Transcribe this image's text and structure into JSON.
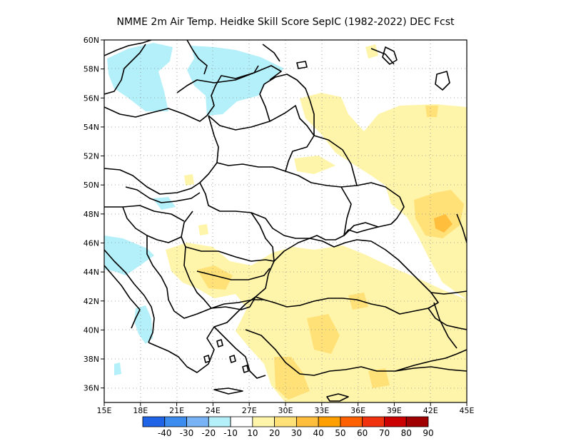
{
  "title": "NMME  2m Air Temp. Heidke Skill Score SepIC (1982-2022) DEC Fcst",
  "map": {
    "lon_range": [
      15,
      45
    ],
    "lat_range": [
      35,
      60
    ],
    "x_tick_labels": [
      "15E",
      "18E",
      "21E",
      "24E",
      "27E",
      "30E",
      "33E",
      "36E",
      "39E",
      "42E",
      "45E"
    ],
    "y_tick_labels": [
      "36N",
      "38N",
      "40N",
      "42N",
      "44N",
      "46N",
      "48N",
      "50N",
      "52N",
      "54N",
      "56N",
      "58N",
      "60N"
    ],
    "grid": "dotted",
    "region": "Eastern Europe / Black Sea / Turkey"
  },
  "colorbar": {
    "labels": [
      "-40",
      "-30",
      "-20",
      "-10",
      "10",
      "20",
      "30",
      "40",
      "50",
      "60",
      "70",
      "80",
      "90"
    ],
    "colors": [
      "#1f64e6",
      "#3c8cf0",
      "#78b4f5",
      "#b4f0fa",
      "#ffffff",
      "#fff5aa",
      "#ffe178",
      "#ffbe3c",
      "#ffa000",
      "#ff6000",
      "#f0320f",
      "#cd0000",
      "#a00000"
    ]
  },
  "field": {
    "colors": {
      "positive_10_20": "#fff5aa",
      "positive_20_30": "#ffe178",
      "positive_30_40": "#ffbe3c",
      "negative_10_20": "#b4f0fa"
    }
  }
}
